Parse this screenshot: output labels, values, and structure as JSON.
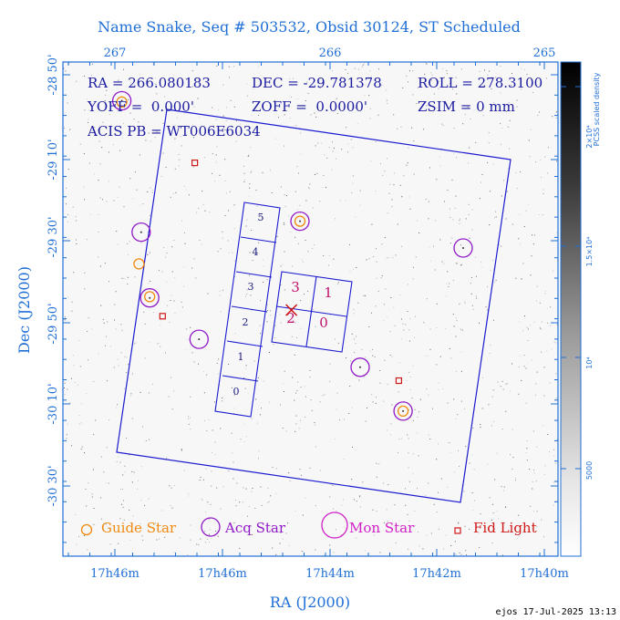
{
  "title": "Name Snake, Seq # 503532, Obsid 30124, ST Scheduled",
  "chart_data": {
    "type": "scatter",
    "xlabel": "RA (J2000)",
    "ylabel": "Dec (J2000)",
    "top_ticks": [
      "267",
      "266",
      "265"
    ],
    "bottom_ticks": [
      "17h46m",
      "17h46m",
      "17h44m",
      "17h42m",
      "17h40m"
    ],
    "left_ticks": [
      "-28 50'",
      "-29 10'",
      "-29 30'",
      "-29 50'",
      "-30 10'",
      "-30 30'"
    ],
    "info": {
      "line1": [
        "RA = 266.080183",
        "DEC = -29.781378",
        "ROLL = 278.3100"
      ],
      "line2": [
        "YOFF =  0.000'",
        "ZOFF =  0.0000'",
        "ZSIM = 0 mm"
      ],
      "line3": "ACIS PB = WT006E6034"
    },
    "acis_s_chips": [
      "0",
      "1",
      "2",
      "3",
      "4",
      "5"
    ],
    "acis_i_chips": [
      "3",
      "1",
      "2",
      "0"
    ],
    "colorbar": {
      "label": "PCSS scaled density",
      "ticks": [
        "2×10⁴",
        "1.5×10⁴",
        "10⁴",
        "5000"
      ],
      "range": [
        0,
        22000
      ]
    },
    "legend": [
      {
        "label": "Guide Star",
        "color": "#f08a10",
        "marker": "circle-small"
      },
      {
        "label": "Acq Star",
        "color": "#9018c8",
        "marker": "circle-medium"
      },
      {
        "label": "Mon Star",
        "color": "#d020c8",
        "marker": "circle-large"
      },
      {
        "label": "Fid Light",
        "color": "#d01818",
        "marker": "square"
      }
    ],
    "guide_stars": [
      {
        "x": 266.89,
        "y": -29.595
      },
      {
        "x": 265.66,
        "y": -30.2
      }
    ],
    "acq_stars": [
      {
        "x": 266.88,
        "y": -29.465
      },
      {
        "x": 266.84,
        "y": -29.735
      },
      {
        "x": 266.14,
        "y": -29.42
      },
      {
        "x": 265.38,
        "y": -29.53
      },
      {
        "x": 266.61,
        "y": -29.905
      },
      {
        "x": 265.86,
        "y": -30.02
      },
      {
        "x": 265.66,
        "y": -30.2
      },
      {
        "x": 266.97,
        "y": -28.925
      }
    ],
    "nested_guide": [
      {
        "x": 266.97,
        "y": -28.93
      },
      {
        "x": 266.14,
        "y": -29.42
      },
      {
        "x": 266.84,
        "y": -29.73
      }
    ],
    "fid_lights": [
      {
        "x": 266.63,
        "y": -29.18
      },
      {
        "x": 266.78,
        "y": -29.81
      },
      {
        "x": 265.68,
        "y": -30.075
      }
    ],
    "target": {
      "x": 266.18,
      "y": -29.785
    },
    "footer": "ejos 17-Jul-2025 13:13"
  }
}
